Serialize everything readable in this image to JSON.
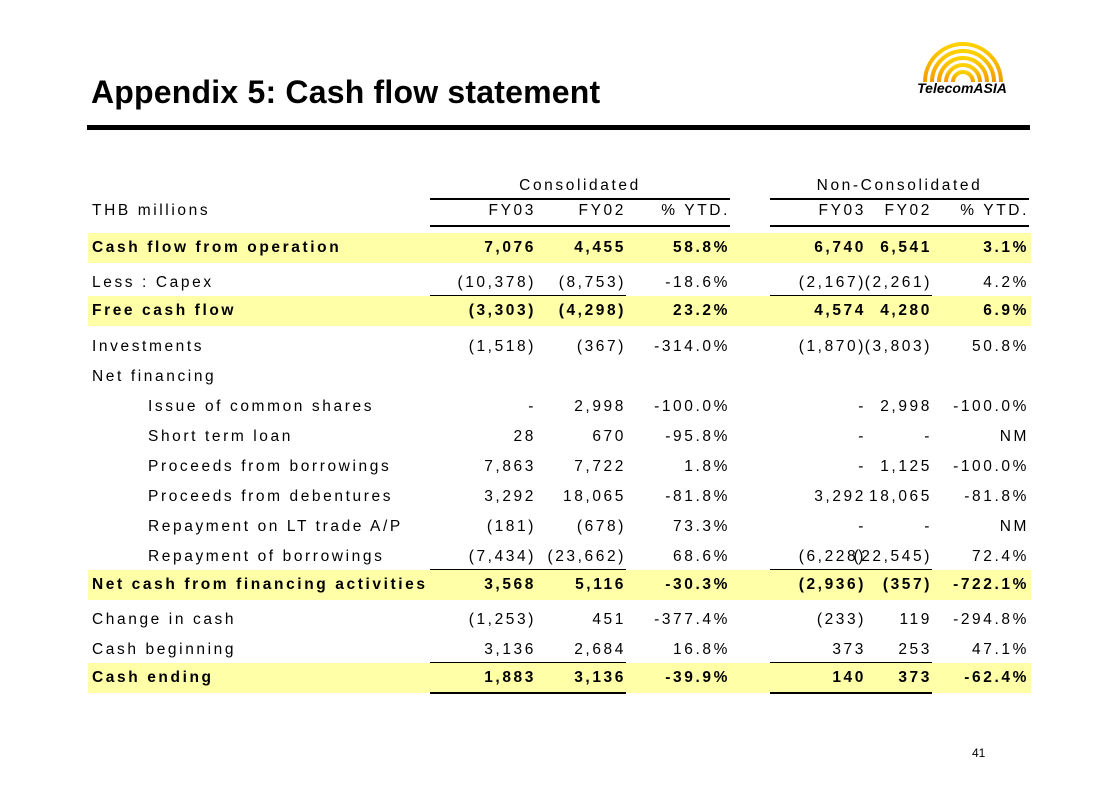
{
  "title": "Appendix 5: Cash flow statement",
  "logo": {
    "text": "TelecomASIA"
  },
  "page_number": "41",
  "table": {
    "group_headers": {
      "consolidated": "Consolidated",
      "non_consolidated": "Non-Consolidated"
    },
    "columns": [
      "THB millions",
      "FY03",
      "FY02",
      "% YTD.",
      "FY03",
      "FY02",
      "% YTD."
    ],
    "rows": [
      {
        "label": "Cash flow from operation",
        "values": [
          "7,076",
          "4,455",
          "58.8%",
          "6,740",
          "6,541",
          "3.1%"
        ]
      },
      {
        "label": "Less : Capex",
        "values": [
          "(10,378)",
          "(8,753)",
          "-18.6%",
          "(2,167)",
          "(2,261)",
          "4.2%"
        ]
      },
      {
        "label": "Free cash flow",
        "values": [
          "(3,303)",
          "(4,298)",
          "23.2%",
          "4,574",
          "4,280",
          "6.9%"
        ]
      },
      {
        "label": "Investments",
        "values": [
          "(1,518)",
          "(367)",
          "-314.0%",
          "(1,870)",
          "(3,803)",
          "50.8%"
        ]
      },
      {
        "label": "Net financing",
        "values": [
          "",
          "",
          "",
          "",
          "",
          ""
        ]
      },
      {
        "label": "Issue of common shares",
        "values": [
          "-",
          "2,998",
          "-100.0%",
          "-",
          "2,998",
          "-100.0%"
        ]
      },
      {
        "label": "Short term loan",
        "values": [
          "28",
          "670",
          "-95.8%",
          "-",
          "-",
          "NM"
        ]
      },
      {
        "label": "Proceeds from borrowings",
        "values": [
          "7,863",
          "7,722",
          "1.8%",
          "-",
          "1,125",
          "-100.0%"
        ]
      },
      {
        "label": "Proceeds from debentures",
        "values": [
          "3,292",
          "18,065",
          "-81.8%",
          "3,292",
          "18,065",
          "-81.8%"
        ]
      },
      {
        "label": "Repayment on LT trade A/P",
        "values": [
          "(181)",
          "(678)",
          "73.3%",
          "-",
          "-",
          "NM"
        ]
      },
      {
        "label": "Repayment of borrowings",
        "values": [
          "(7,434)",
          "(23,662)",
          "68.6%",
          "(6,228)",
          "(22,545)",
          "72.4%"
        ]
      },
      {
        "label": "Net cash from financing activities",
        "values": [
          "3,568",
          "5,116",
          "-30.3%",
          "(2,936)",
          "(357)",
          "-722.1%"
        ]
      },
      {
        "label": "Change in cash",
        "values": [
          "(1,253)",
          "451",
          "-377.4%",
          "(233)",
          "119",
          "-294.8%"
        ]
      },
      {
        "label": "Cash beginning",
        "values": [
          "3,136",
          "2,684",
          "16.8%",
          "373",
          "253",
          "47.1%"
        ]
      },
      {
        "label": "Cash ending",
        "values": [
          "1,883",
          "3,136",
          "-39.9%",
          "140",
          "373",
          "-62.4%"
        ]
      }
    ]
  }
}
